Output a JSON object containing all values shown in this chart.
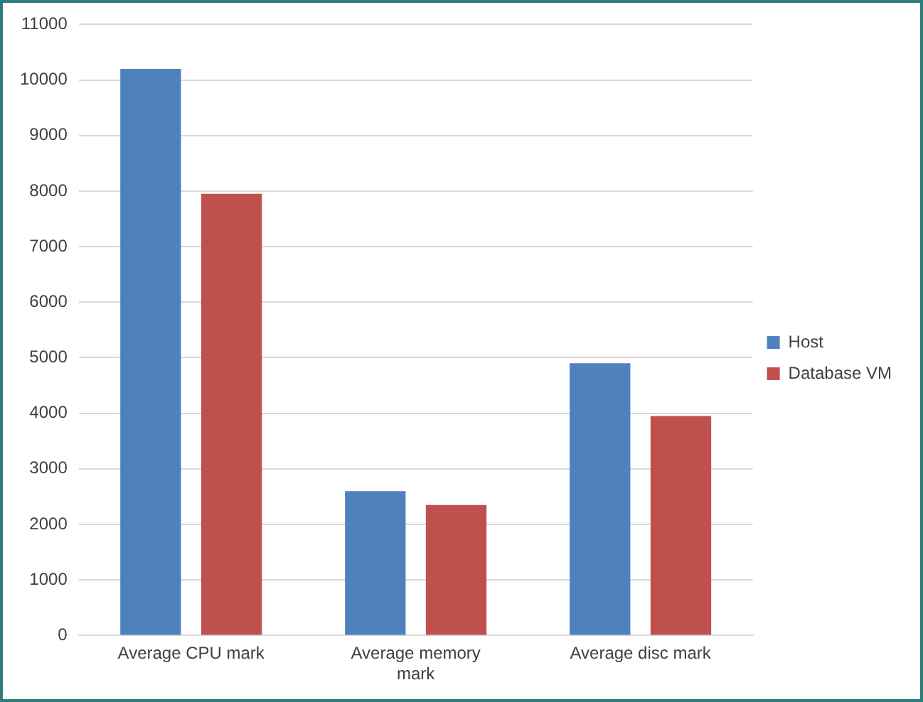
{
  "chart_data": {
    "type": "bar",
    "categories": [
      "Average CPU mark",
      "Average memory mark",
      "Average disc mark"
    ],
    "series": [
      {
        "name": "Host",
        "color": "#4f81bd",
        "values": [
          10200,
          2600,
          4900
        ]
      },
      {
        "name": "Database VM",
        "color": "#c0504d",
        "values": [
          7950,
          2350,
          3950
        ]
      }
    ],
    "ylim": [
      0,
      11000
    ],
    "yticks": [
      0,
      1000,
      2000,
      3000,
      4000,
      5000,
      6000,
      7000,
      8000,
      9000,
      10000,
      11000
    ],
    "grid": "y",
    "legend": "right"
  }
}
